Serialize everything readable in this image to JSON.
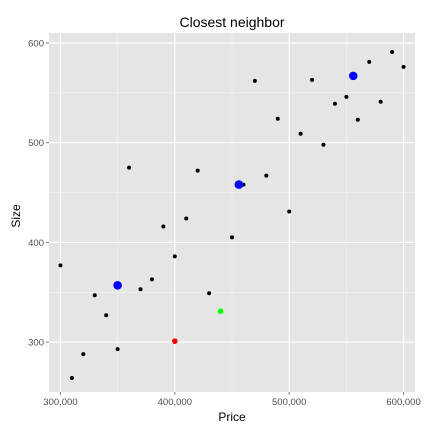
{
  "chart_data": {
    "type": "scatter",
    "title": "Closest neighbor",
    "xlabel": "Price",
    "ylabel": "Size",
    "xlim": [
      290000,
      610000
    ],
    "ylim": [
      250,
      610
    ],
    "x_ticks": [
      300000,
      400000,
      500000,
      600000
    ],
    "x_tick_labels": [
      "300,000",
      "400,000",
      "500,000",
      "600,000"
    ],
    "y_ticks": [
      300,
      400,
      500,
      600
    ],
    "y_tick_labels": [
      "300",
      "400",
      "500",
      "600"
    ],
    "grid": true,
    "legend": "none",
    "colors": {
      "panel": "#e5e5e5",
      "grid_major": "#ffffff",
      "grid_minor": "#f2f2f2",
      "data": "#000000",
      "neighbor": "#0000ff",
      "query": "#ff0000",
      "prediction": "#00ff00"
    },
    "series": [
      {
        "role": "data",
        "x": [
          300000,
          310000,
          320000,
          330000,
          340000,
          350000,
          360000,
          370000,
          380000,
          390000,
          400000,
          410000,
          420000,
          430000,
          450000,
          470000,
          480000,
          490000,
          500000,
          510000,
          520000,
          530000,
          540000,
          550000,
          560000,
          570000,
          580000,
          590000,
          600000,
          460000
        ],
        "y": [
          377,
          264,
          288,
          347,
          327,
          293,
          475,
          353,
          363,
          416,
          386,
          424,
          472,
          349,
          405,
          562,
          467,
          524,
          431,
          509,
          563,
          498,
          539,
          546,
          523,
          581,
          541,
          591,
          576,
          458
        ]
      },
      {
        "role": "neighbor",
        "x": [
          350000,
          456000,
          556000
        ],
        "y": [
          357,
          458,
          567
        ]
      },
      {
        "role": "query",
        "x": [
          400000
        ],
        "y": [
          301
        ]
      },
      {
        "role": "prediction",
        "x": [
          440000
        ],
        "y": [
          331
        ]
      }
    ]
  }
}
